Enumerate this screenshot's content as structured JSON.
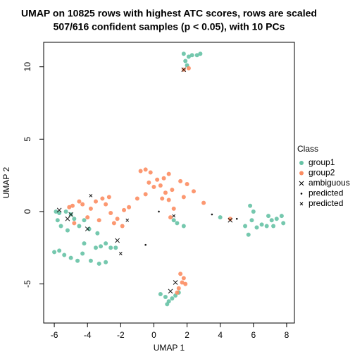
{
  "chart_data": {
    "type": "scatter",
    "title": "UMAP on 10825 rows with highest ATC scores, rows are scaled",
    "subtitle": "507/616 confident samples (p < 0.05), with 10 PCs",
    "x_label": "UMAP 1",
    "y_label": "UMAP 2",
    "xlim": [
      -6.64,
      8.47
    ],
    "ylim": [
      -7.7,
      11.69
    ],
    "xticks": [
      -6,
      -4,
      -2,
      0,
      2,
      4,
      6,
      8
    ],
    "yticks": [
      -5,
      0,
      5,
      10
    ],
    "legend_title": "Class",
    "legend_position": "right",
    "series": [
      {
        "name": "group1",
        "color": "#66c2a5",
        "marker": "circle",
        "x": [
          1.8,
          2.1,
          2.3,
          2.6,
          2.8,
          1.9,
          2.0,
          -6.0,
          -5.7,
          -5.4,
          -5.0,
          -4.6,
          -4.3,
          -3.8,
          -3.3,
          -2.9,
          -2.6,
          -2.9,
          -3.5,
          -3.2,
          -4.2,
          -3.9,
          -3.4,
          -2.3,
          -5.9,
          -5.7,
          -5.3,
          -5.0,
          -4.8,
          -5.6,
          -5.8,
          -5.2,
          -4.5,
          -4.2,
          1.4,
          1.8,
          1.2,
          5.8,
          6.0,
          5.7,
          6.2,
          6.5,
          6.8,
          7.1,
          7.4,
          7.7,
          7.8,
          6.9,
          5.5,
          5.9,
          7.2,
          4.0,
          0.4,
          0.7,
          0.9,
          1.1,
          1.3,
          0.8,
          1.5
        ],
        "y": [
          10.9,
          10.7,
          10.8,
          10.8,
          10.9,
          10.4,
          10.1,
          -2.8,
          -2.7,
          -3.0,
          -3.2,
          -3.4,
          -2.9,
          -3.4,
          -3.6,
          -3.5,
          -2.5,
          -2.2,
          -2.5,
          -2.4,
          -2.2,
          -1.2,
          -1.5,
          -2.5,
          0.0,
          -0.1,
          0.0,
          -0.2,
          -0.5,
          -1.0,
          -0.6,
          -1.3,
          -1.0,
          -0.6,
          -0.8,
          -1.0,
          -0.6,
          0.4,
          0.0,
          -1.6,
          -1.1,
          -0.9,
          -1.0,
          -0.6,
          -0.5,
          -0.3,
          -0.8,
          -0.3,
          -1.0,
          -0.6,
          -1.0,
          -0.4,
          -5.7,
          -5.9,
          -6.2,
          -6.0,
          -5.8,
          -6.4,
          -5.6
        ]
      },
      {
        "name": "group2",
        "color": "#fc8d62",
        "marker": "circle",
        "x": [
          1.8,
          2.1,
          -0.8,
          -0.5,
          -0.2,
          0.2,
          0.4,
          0.6,
          0.9,
          0.0,
          -0.3,
          0.7,
          0.9,
          1.1,
          1.6,
          2.0,
          1.8,
          1.2,
          1.0,
          0.5,
          -0.5,
          -1.0,
          -1.5,
          -1.8,
          -2.2,
          -1.9,
          -2.6,
          -2.9,
          -3.1,
          -2.7,
          -3.5,
          -3.8,
          -4.3,
          -4.5,
          -4.9,
          -5.1,
          -4.0,
          -4.8,
          -3.3,
          -2.4,
          2.4,
          3.0,
          1.6,
          1.8,
          1.7,
          1.5,
          1.9,
          1.4,
          4.6
        ],
        "y": [
          9.8,
          9.9,
          2.8,
          2.9,
          2.7,
          2.2,
          1.8,
          2.3,
          2.6,
          1.7,
          2.0,
          1.3,
          0.8,
          1.5,
          2.1,
          1.9,
          1.0,
          0.2,
          -0.4,
          0.9,
          1.2,
          0.9,
          0.3,
          0.1,
          -0.5,
          -1.0,
          -0.1,
          0.5,
          0.9,
          1.0,
          0.7,
          0.2,
          0.5,
          0.7,
          0.4,
          0.3,
          -0.4,
          -0.8,
          -0.6,
          -0.8,
          1.4,
          0.6,
          -4.3,
          -4.6,
          -4.9,
          -5.3,
          -5.0,
          -5.6,
          -0.5
        ]
      },
      {
        "name": "ambiguous",
        "color": "#000000",
        "marker": "cross",
        "x": [
          -5.7,
          -5.0,
          -4.0,
          -5.2,
          1.3,
          1.0,
          1.8,
          -2.2,
          4.6
        ],
        "y": [
          0.1,
          -0.2,
          -1.2,
          -0.5,
          -4.9,
          -5.5,
          9.8,
          -2.0,
          -0.6
        ]
      },
      {
        "name": "predicted",
        "color": "#000000",
        "marker": "dot",
        "x": [
          3.5,
          5.0,
          -0.5,
          0.3
        ],
        "y": [
          -0.2,
          -0.5,
          -2.3,
          0.0
        ]
      },
      {
        "name": "predicted",
        "color": "#000000",
        "marker": "smallcross",
        "x": [
          -1.6,
          -2.0,
          1.2,
          -3.8
        ],
        "y": [
          -0.6,
          -2.9,
          -0.3,
          1.1
        ]
      }
    ]
  }
}
